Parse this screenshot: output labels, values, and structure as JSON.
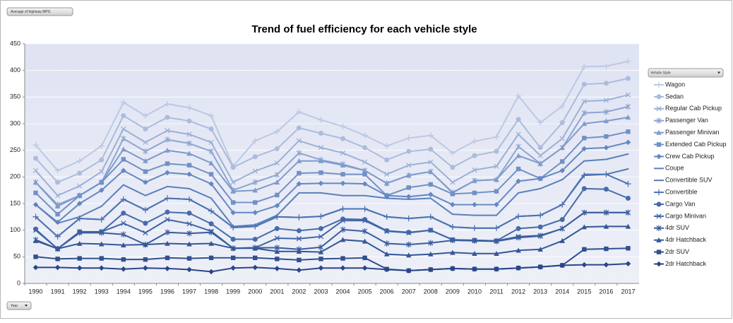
{
  "chart_data": {
    "type": "line",
    "stacked": true,
    "title": "Trend of fuel efficiency for each vehicle style",
    "value_field_button": "Average of highway MPG",
    "legend_field_button": "Vehicle Style",
    "axis_field_button": "Year",
    "categories": [
      "1990",
      "1991",
      "1992",
      "1993",
      "1994",
      "1995",
      "1996",
      "1997",
      "1998",
      "1999",
      "2000",
      "2001",
      "2002",
      "2003",
      "2004",
      "2005",
      "2006",
      "2007",
      "2008",
      "2009",
      "2010",
      "2011",
      "2012",
      "2013",
      "2014",
      "2015",
      "2016",
      "2017"
    ],
    "ylim": [
      0,
      450
    ],
    "yticks": [
      0,
      50,
      100,
      150,
      200,
      250,
      300,
      350,
      400,
      450
    ],
    "grid": true,
    "legend_position": "right",
    "series": [
      {
        "name": "2dr Hatchback",
        "color": "#2b4686",
        "marker": "diamond",
        "values": [
          30,
          30,
          29,
          29,
          27,
          29,
          28,
          26,
          22,
          29,
          30,
          28,
          25,
          29,
          29,
          29,
          26,
          24,
          26,
          28,
          27,
          27,
          29,
          31,
          34,
          35,
          35,
          37
        ]
      },
      {
        "name": "2dr SUV",
        "color": "#30508f",
        "marker": "square",
        "values": [
          20,
          16,
          18,
          18,
          18,
          16,
          20,
          21,
          26,
          19,
          18,
          18,
          19,
          17,
          18,
          19,
          1,
          0,
          0,
          0,
          0,
          0,
          0,
          0,
          0,
          29,
          30,
          29
        ]
      },
      {
        "name": "4dr Hatchback",
        "color": "#355797",
        "marker": "triangle",
        "values": [
          30,
          19,
          28,
          27,
          27,
          28,
          27,
          27,
          27,
          18,
          18,
          14,
          16,
          13,
          35,
          31,
          28,
          29,
          29,
          30,
          29,
          29,
          33,
          33,
          46,
          42,
          42,
          41
        ]
      },
      {
        "name": "4dr SUV",
        "color": "#3a5d9d",
        "marker": "star",
        "values": [
          2,
          0,
          20,
          21,
          20,
          0,
          21,
          20,
          21,
          0,
          1,
          7,
          4,
          9,
          19,
          19,
          20,
          20,
          21,
          23,
          24,
          23,
          24,
          25,
          23,
          27,
          26,
          26
        ]
      },
      {
        "name": "Cargo Minivan",
        "color": "#4064a4",
        "marker": "x",
        "values": [
          18,
          0,
          2,
          2,
          21,
          22,
          24,
          18,
          2,
          0,
          0,
          18,
          20,
          20,
          17,
          20,
          23,
          22,
          24,
          1,
          1,
          1,
          2,
          1,
          0,
          0,
          0,
          0
        ]
      },
      {
        "name": "Cargo Van",
        "color": "#466bab",
        "marker": "circle",
        "values": [
          2,
          0,
          0,
          0,
          19,
          18,
          14,
          20,
          14,
          17,
          16,
          18,
          15,
          15,
          3,
          2,
          1,
          1,
          0,
          0,
          0,
          0,
          15,
          16,
          17,
          45,
          44,
          27
        ]
      },
      {
        "name": "Convertible",
        "color": "#4c72b1",
        "marker": "plus",
        "values": [
          23,
          23,
          25,
          23,
          26,
          25,
          26,
          26,
          24,
          22,
          24,
          22,
          25,
          23,
          19,
          20,
          26,
          26,
          25,
          24,
          23,
          24,
          23,
          22,
          28,
          25,
          28,
          27
        ]
      },
      {
        "name": "Convertible SUV",
        "color": "#5379b7",
        "marker": "none",
        "values": [
          0,
          0,
          0,
          0,
          0,
          0,
          0,
          0,
          0,
          0,
          0,
          0,
          0,
          0,
          0,
          0,
          0,
          0,
          0,
          0,
          0,
          0,
          0,
          0,
          0,
          2,
          0,
          28
        ]
      },
      {
        "name": "Coupe",
        "color": "#5a80bc",
        "marker": "none",
        "values": [
          23,
          25,
          3,
          25,
          27,
          27,
          22,
          20,
          24,
          2,
          3,
          3,
          46,
          44,
          25,
          25,
          35,
          36,
          35,
          24,
          24,
          24,
          44,
          50,
          47,
          25,
          28,
          28
        ]
      },
      {
        "name": "Crew Cab Pickup",
        "color": "#6588c1",
        "marker": "diamond",
        "values": [
          0,
          2,
          25,
          30,
          27,
          25,
          26,
          27,
          27,
          26,
          23,
          18,
          17,
          18,
          23,
          22,
          5,
          5,
          7,
          18,
          20,
          20,
          22,
          19,
          17,
          23,
          22,
          22
        ]
      },
      {
        "name": "Extended Cab Pickup",
        "color": "#7191c6",
        "marker": "square",
        "values": [
          22,
          15,
          15,
          15,
          21,
          20,
          17,
          17,
          18,
          19,
          19,
          20,
          20,
          20,
          17,
          18,
          0,
          17,
          19,
          20,
          22,
          25,
          23,
          0,
          17,
          20,
          21,
          20
        ]
      },
      {
        "name": "Passenger Minivan",
        "color": "#7e9bcb",
        "marker": "triangle",
        "values": [
          20,
          15,
          0,
          0,
          19,
          20,
          25,
          22,
          21,
          21,
          23,
          24,
          23,
          22,
          17,
          7,
          23,
          23,
          24,
          2,
          23,
          22,
          25,
          28,
          26,
          27,
          29,
          27
        ]
      },
      {
        "name": "Passenger Van",
        "color": "#8ca5d1",
        "marker": "star",
        "values": [
          0,
          3,
          0,
          0,
          20,
          18,
          20,
          19,
          22,
          2,
          15,
          14,
          15,
          2,
          2,
          0,
          0,
          0,
          0,
          1,
          0,
          0,
          17,
          0,
          0,
          20,
          17,
          20
        ]
      },
      {
        "name": "Regular Cab Pickup",
        "color": "#9bb0d7",
        "marker": "x",
        "values": [
          22,
          17,
          18,
          20,
          18,
          17,
          17,
          17,
          17,
          15,
          21,
          22,
          23,
          23,
          21,
          16,
          17,
          19,
          18,
          19,
          20,
          25,
          23,
          15,
          17,
          22,
          22,
          22
        ]
      },
      {
        "name": "Sedan",
        "color": "#abbcdd",
        "marker": "circle",
        "values": [
          23,
          25,
          24,
          22,
          25,
          25,
          25,
          25,
          25,
          28,
          27,
          27,
          24,
          27,
          27,
          27,
          27,
          26,
          24,
          28,
          27,
          28,
          28,
          15,
          30,
          32,
          32,
          31
        ]
      },
      {
        "name": "Wagon",
        "color": "#bcc8e4",
        "marker": "plus",
        "values": [
          25,
          22,
          23,
          26,
          25,
          25,
          25,
          25,
          25,
          2,
          30,
          32,
          30,
          25,
          23,
          23,
          26,
          25,
          26,
          27,
          27,
          27,
          44,
          47,
          31,
          33,
          32,
          32
        ]
      }
    ]
  }
}
